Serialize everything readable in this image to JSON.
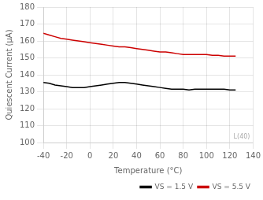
{
  "chart_data": {
    "type": "line",
    "xlabel": "Temperature (°C)",
    "ylabel": "Quiescent Current (μA)",
    "xlim": [
      -40,
      140
    ],
    "ylim": [
      100,
      180
    ],
    "xticks": [
      -40,
      -20,
      0,
      20,
      40,
      60,
      80,
      100,
      120,
      140
    ],
    "yticks": [
      100,
      110,
      120,
      130,
      140,
      150,
      160,
      170,
      180
    ],
    "grid": true,
    "legend": "lower right",
    "annotations": [
      "L(40)"
    ],
    "series": [
      {
        "name": "VS = 1.5 V",
        "color": "#000000",
        "x": [
          -40,
          -35,
          -30,
          -25,
          -20,
          -15,
          -10,
          -5,
          0,
          5,
          10,
          15,
          20,
          25,
          30,
          35,
          40,
          45,
          50,
          55,
          60,
          65,
          70,
          75,
          80,
          85,
          90,
          95,
          100,
          105,
          110,
          115,
          120,
          125
        ],
        "values": [
          135.5,
          135.0,
          134.0,
          133.5,
          133.0,
          132.5,
          132.5,
          132.5,
          133.0,
          133.5,
          134.0,
          134.5,
          135.0,
          135.5,
          135.5,
          135.0,
          134.5,
          134.0,
          133.5,
          133.0,
          132.5,
          132.0,
          131.5,
          131.5,
          131.5,
          131.0,
          131.5,
          131.5,
          131.5,
          131.5,
          131.5,
          131.5,
          131.0,
          131.0
        ]
      },
      {
        "name": "VS = 5.5 V",
        "color": "#cc0000",
        "x": [
          -40,
          -35,
          -30,
          -25,
          -20,
          -15,
          -10,
          -5,
          0,
          5,
          10,
          15,
          20,
          25,
          30,
          35,
          40,
          45,
          50,
          55,
          60,
          65,
          70,
          75,
          80,
          85,
          90,
          95,
          100,
          105,
          110,
          115,
          120,
          125
        ],
        "values": [
          164.5,
          163.5,
          162.5,
          161.5,
          161.0,
          160.5,
          160.0,
          159.5,
          159.0,
          158.5,
          158.0,
          157.5,
          157.0,
          156.5,
          156.5,
          156.0,
          155.5,
          155.0,
          154.5,
          154.0,
          153.5,
          153.5,
          153.0,
          152.5,
          152.0,
          152.0,
          152.0,
          152.0,
          152.0,
          151.5,
          151.5,
          151.0,
          151.0,
          151.0
        ]
      }
    ]
  }
}
